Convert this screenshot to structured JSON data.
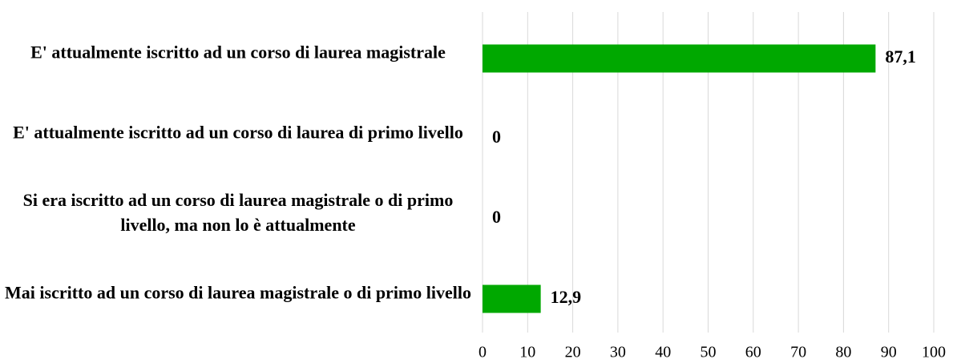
{
  "chart_data": {
    "type": "bar",
    "orientation": "horizontal",
    "categories": [
      "E' attualmente iscritto ad un corso di laurea magistrale",
      "E' attualmente iscritto ad un corso di laurea di primo livello",
      "Si era iscritto ad un corso di laurea magistrale o di primo livello, ma non lo è attualmente",
      "Mai iscritto ad un corso di laurea magistrale o di primo livello"
    ],
    "values": [
      87.1,
      0,
      0,
      12.9
    ],
    "value_labels": [
      "87,1",
      "0",
      "0",
      "12,9"
    ],
    "color": "#00a800",
    "xlim": [
      0,
      100
    ],
    "xticks": [
      0,
      10,
      20,
      30,
      40,
      50,
      60,
      70,
      80,
      90,
      100
    ],
    "grid": true
  }
}
